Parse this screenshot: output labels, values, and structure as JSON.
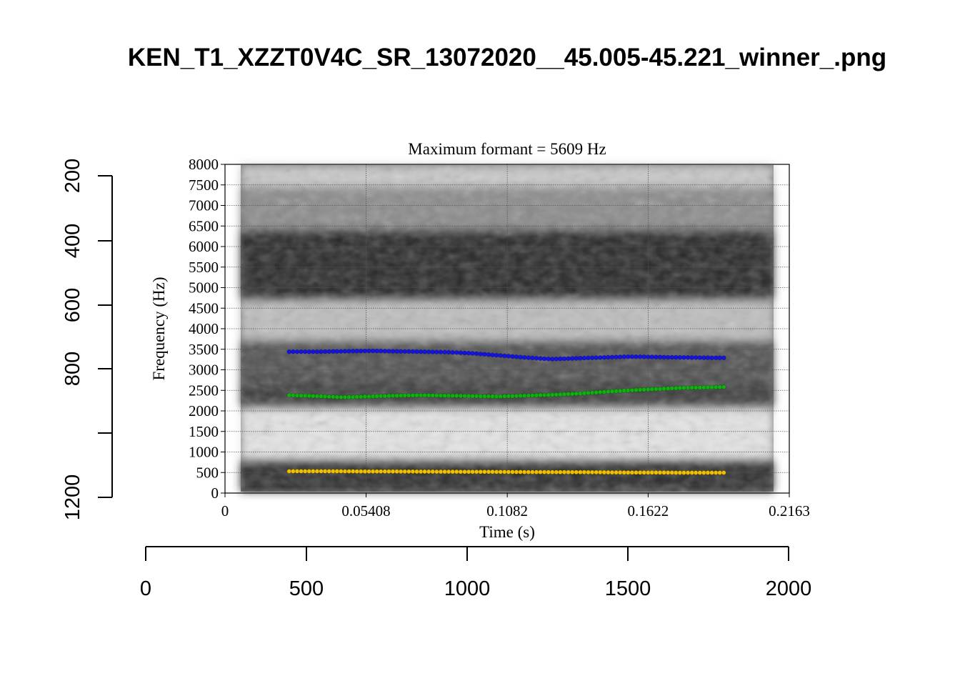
{
  "title": "KEN_T1_XZZT0V4C_SR_13072020__45.005-45.221_winner_.png",
  "outer_axes": {
    "x_ticks": [
      "0",
      "500",
      "1000",
      "1500",
      "2000"
    ],
    "y_ticks": [
      "200",
      "400",
      "600",
      "800",
      "1200"
    ]
  },
  "chart_data": {
    "type": "scatter",
    "title": "Maximum formant  =  5609 Hz",
    "xlabel": "Time (s)",
    "ylabel": "Frequency (Hz)",
    "xlim": [
      0,
      0.2163
    ],
    "ylim": [
      0,
      8000
    ],
    "x_tick_labels": [
      "0",
      "0.05408",
      "0.1082",
      "0.1622",
      "0.2163"
    ],
    "y_tick_labels": [
      "0",
      "500",
      "1000",
      "1500",
      "2000",
      "2500",
      "3000",
      "3500",
      "4000",
      "4500",
      "5000",
      "5500",
      "6000",
      "6500",
      "7000",
      "7500",
      "8000"
    ],
    "grid": true,
    "background": "spectrogram",
    "series": [
      {
        "color": "#1414e0",
        "x": [
          0.0246,
          0.035,
          0.045,
          0.055,
          0.065,
          0.075,
          0.085,
          0.095,
          0.105,
          0.115,
          0.125,
          0.135,
          0.145,
          0.155,
          0.165,
          0.175,
          0.1912
        ],
        "y": [
          3440,
          3440,
          3450,
          3460,
          3450,
          3440,
          3430,
          3400,
          3350,
          3300,
          3260,
          3280,
          3300,
          3320,
          3310,
          3300,
          3290
        ]
      },
      {
        "color": "#10b010",
        "x": [
          0.0246,
          0.035,
          0.045,
          0.055,
          0.065,
          0.075,
          0.085,
          0.095,
          0.105,
          0.115,
          0.125,
          0.135,
          0.145,
          0.155,
          0.165,
          0.175,
          0.1912
        ],
        "y": [
          2380,
          2360,
          2330,
          2350,
          2370,
          2380,
          2370,
          2360,
          2350,
          2370,
          2390,
          2420,
          2460,
          2500,
          2530,
          2560,
          2580
        ]
      },
      {
        "color": "#f0c000",
        "x": [
          0.0246,
          0.035,
          0.045,
          0.055,
          0.065,
          0.075,
          0.085,
          0.095,
          0.105,
          0.115,
          0.125,
          0.135,
          0.145,
          0.155,
          0.165,
          0.175,
          0.1912
        ],
        "y": [
          530,
          530,
          530,
          525,
          525,
          522,
          520,
          518,
          515,
          512,
          510,
          508,
          505,
          500,
          500,
          495,
          495
        ]
      }
    ]
  }
}
